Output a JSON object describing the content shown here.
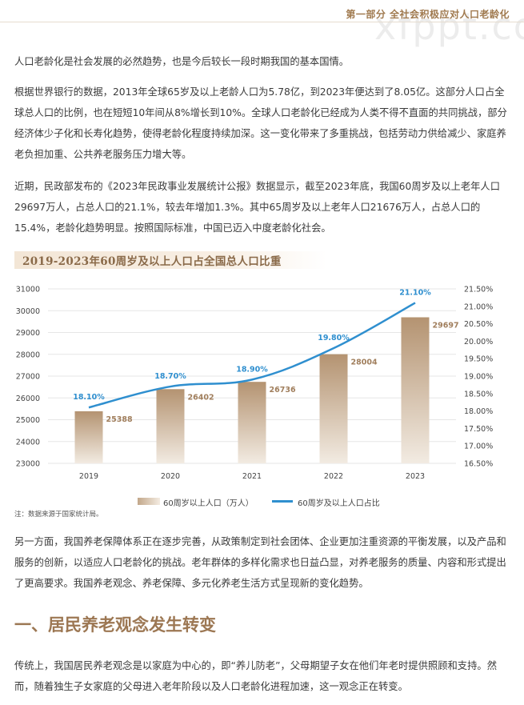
{
  "header": {
    "title": "第一部分 全社会积极应对人口老龄化"
  },
  "watermark": "xfppt.com",
  "paragraphs": {
    "p1": "人口老龄化是社会发展的必然趋势，也是今后较长一段时期我国的基本国情。",
    "p2": "根据世界银行的数据，2013年全球65岁及以上老龄人口为5.78亿，到2023年便达到了8.05亿。这部分人口占全球总人口的比例，也在短短10年间从8%增长到10%。全球人口老龄化已经成为人类不得不直面的共同挑战，部分经济体少子化和长寿化趋势，使得老龄化程度持续加深。这一变化带来了多重挑战，包括劳动力供给减少、家庭养老负担加重、公共养老服务压力增大等。",
    "p3": "近期，民政部发布的《2023年民政事业发展统计公报》数据显示，截至2023年底，我国60周岁及以上老年人口29697万人，占总人口的21.1%，较去年增加1.3%。其中65周岁及以上老年人口21676万人，占总人口的15.4%，老龄化趋势明显。按照国际标准，中国已迈入中度老龄化社会。",
    "p4": "另一方面，我国养老保障体系正在逐步完善，从政策制定到社会团体、企业更加注重资源的平衡发展，以及产品和服务的创新，以适应人口老龄化的挑战。老年群体的多样化需求也日益凸显，对养老服务的质量、内容和形式提出了更高要求。我国养老观念、养老保障、多元化养老生活方式呈现新的变化趋势。",
    "p5": "传统上，我国居民养老观念是以家庭为中心的，即“养儿防老”，父母期望子女在他们年老时提供照顾和支持。然而，随着独生子女家庭的父母进入老年阶段以及人口老龄化进程加速，这一观念正在转变。"
  },
  "section": {
    "heading": "一、居民养老观念发生转变"
  },
  "note": "注：数据来源于国家统计局。",
  "chart_data": {
    "type": "bar+line",
    "title": "2019-2023年60周岁及以上人口占全国总人口比重",
    "categories": [
      "2019",
      "2020",
      "2021",
      "2022",
      "2023"
    ],
    "series": [
      {
        "name": "60周岁以上人口（万人）",
        "type": "bar",
        "axis": "left",
        "values": [
          25388,
          26402,
          26736,
          28004,
          29697
        ],
        "labels": [
          "25388",
          "26402",
          "26736",
          "28004",
          "29697"
        ]
      },
      {
        "name": "60周岁及以上人口占比",
        "type": "line",
        "axis": "right",
        "values": [
          18.1,
          18.7,
          18.9,
          19.8,
          21.1
        ],
        "labels": [
          "18.10%",
          "18.70%",
          "18.90%",
          "19.80%",
          "21.10%"
        ]
      }
    ],
    "left_axis": {
      "min": 23000,
      "max": 31000,
      "step": 1000,
      "ticks": [
        "23000",
        "24000",
        "25000",
        "26000",
        "27000",
        "28000",
        "29000",
        "30000",
        "31000"
      ]
    },
    "right_axis": {
      "min": 16.5,
      "max": 21.5,
      "step": 0.5,
      "ticks": [
        "16.50%",
        "17.00%",
        "17.50%",
        "18.00%",
        "18.50%",
        "19.00%",
        "19.50%",
        "20.00%",
        "20.50%",
        "21.00%",
        "21.50%"
      ]
    },
    "grid": true,
    "legend_position": "bottom",
    "colors": {
      "bar_dark": "#b49371",
      "bar_light": "#f2ebe2",
      "line": "#2f8fcf",
      "bar_label": "#a07e5c",
      "line_label": "#2f8fcf"
    }
  }
}
